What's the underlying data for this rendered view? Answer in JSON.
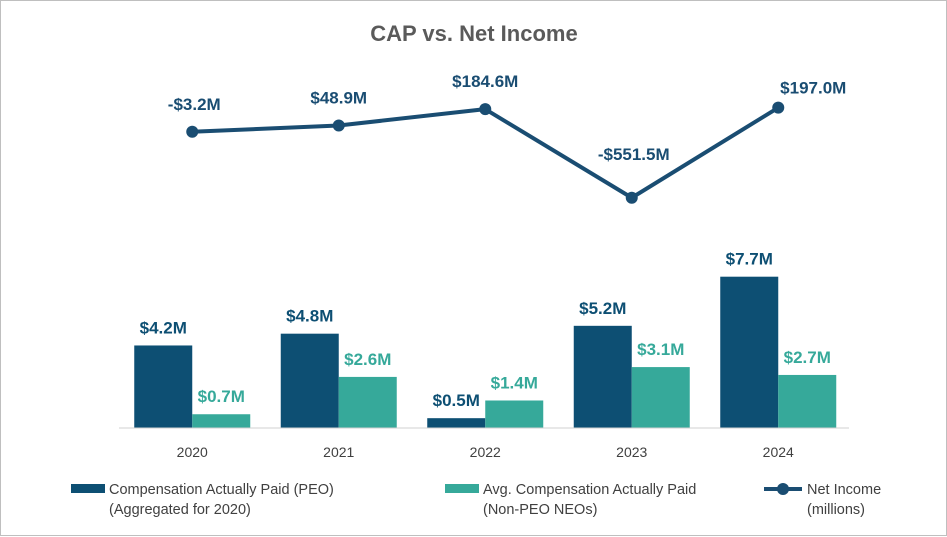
{
  "chart_data": {
    "type": "bar",
    "title": "CAP vs. Net Income",
    "categories": [
      "2020",
      "2021",
      "2022",
      "2023",
      "2024"
    ],
    "series": [
      {
        "name": "Compensation Actually Paid (PEO)",
        "name_line2": "(Aggregated for 2020)",
        "type": "bar",
        "color": "#0d4f73",
        "unit": "$M",
        "values": [
          4.2,
          4.8,
          0.5,
          5.2,
          7.7
        ],
        "labels": [
          "$4.2M",
          "$4.8M",
          "$0.5M",
          "$5.2M",
          "$7.7M"
        ]
      },
      {
        "name": "Avg. Compensation Actually Paid",
        "name_line2": "(Non-PEO NEOs)",
        "type": "bar",
        "color": "#36a99a",
        "unit": "$M",
        "values": [
          0.7,
          2.6,
          1.4,
          3.1,
          2.7
        ],
        "labels": [
          "$0.7M",
          "$2.6M",
          "$1.4M",
          "$3.1M",
          "$2.7M"
        ]
      },
      {
        "name": "Net Income",
        "name_line2": "(millions)",
        "type": "line",
        "color": "#1a4d72",
        "unit": "$M",
        "values": [
          -3.2,
          48.9,
          184.6,
          -551.5,
          197.0
        ],
        "labels": [
          "-$3.2M",
          "$48.9M",
          "$184.6M",
          "-$551.5M",
          "$197.0M"
        ]
      }
    ],
    "bar_ylim": [
      0,
      10
    ],
    "line_ylim": [
      -2000,
      450
    ],
    "xlabel": "",
    "ylabel": "",
    "grid": false,
    "legend": "bottom"
  }
}
